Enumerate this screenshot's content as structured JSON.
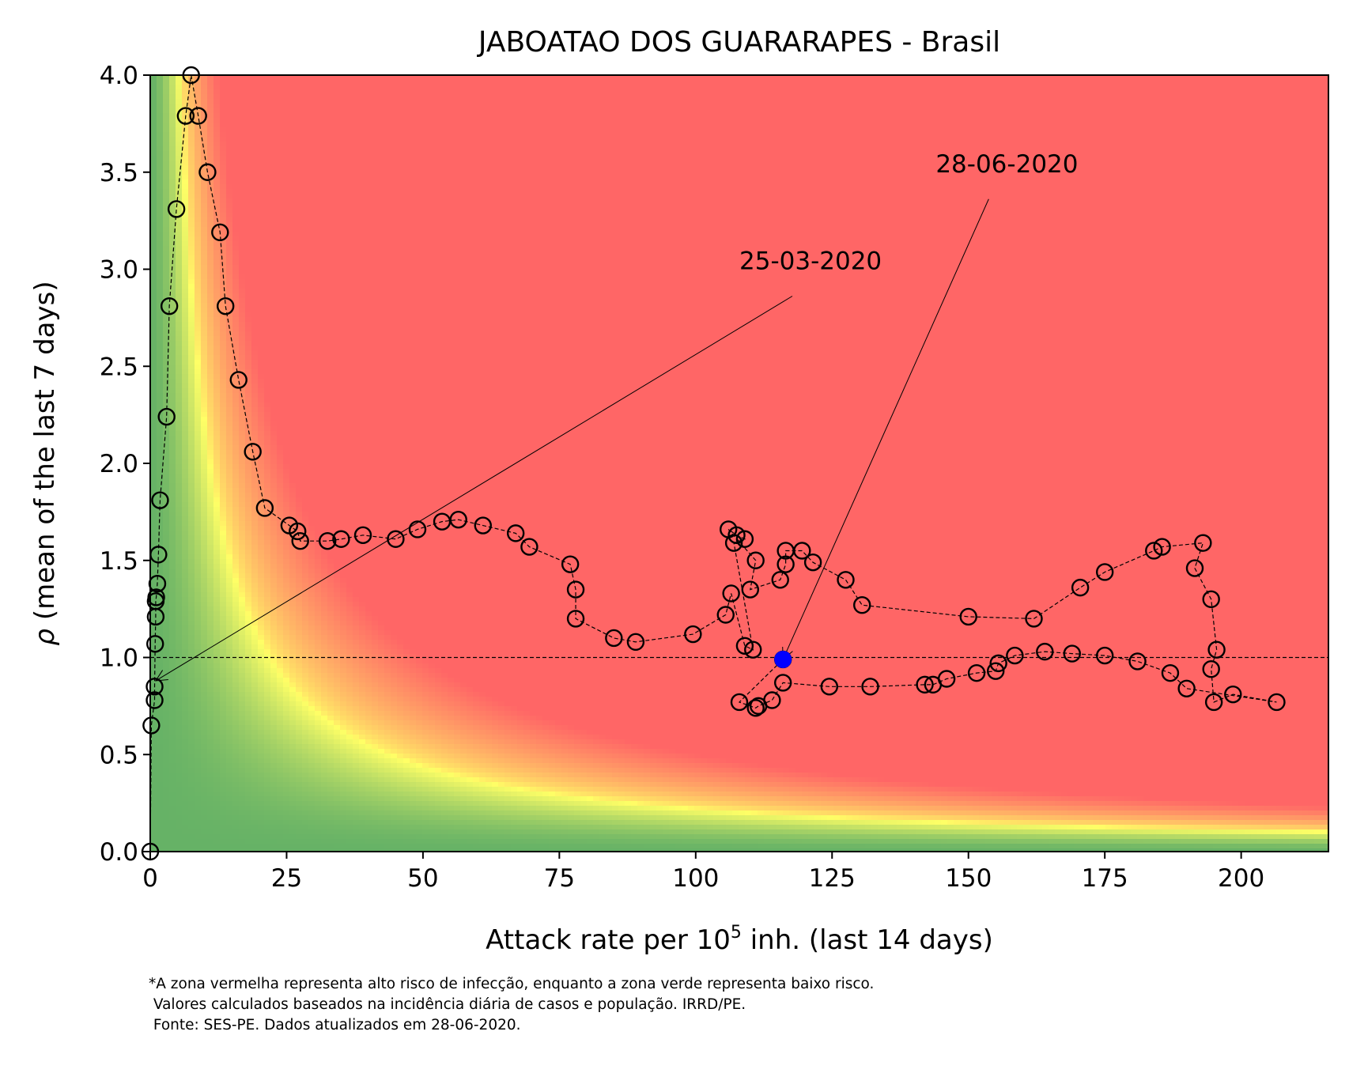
{
  "chart_data": {
    "type": "scatter",
    "title": "JABOATAO DOS GUARARAPES - Brasil",
    "xlabel_prefix": "Attack rate per 10",
    "xlabel_sup": "5",
    "xlabel_suffix": " inh. (last 14 days)",
    "ylabel_symbol": "ρ",
    "ylabel": " (mean of the last 7 days)",
    "xlim": [
      0,
      216
    ],
    "ylim": [
      0,
      4
    ],
    "xticks": [
      0,
      25,
      50,
      75,
      100,
      125,
      150,
      175,
      200
    ],
    "yticks": [
      0.0,
      0.5,
      1.0,
      1.5,
      2.0,
      2.5,
      3.0,
      3.5,
      4.0
    ],
    "ytick_labels": [
      "0.0",
      "0.5",
      "1.0",
      "1.5",
      "2.0",
      "2.5",
      "3.0",
      "3.5",
      "4.0"
    ],
    "reference_line_y": 1.0,
    "background": "risk heatmap: green (low) to yellow to red (high)",
    "colors": {
      "red": "#ff6666",
      "yellow": "#ffff66",
      "green": "#66b266",
      "current_point": "#0000ff"
    },
    "series": [
      {
        "points": [
          [
            0.0,
            0.0
          ],
          [
            0.2,
            0.65
          ],
          [
            0.8,
            0.78
          ],
          [
            0.8,
            0.85
          ],
          [
            0.9,
            1.07
          ],
          [
            1.0,
            1.21
          ],
          [
            1.0,
            1.29
          ],
          [
            1.1,
            1.31
          ],
          [
            1.3,
            1.38
          ],
          [
            1.5,
            1.53
          ],
          [
            1.8,
            1.81
          ],
          [
            3.0,
            2.24
          ],
          [
            3.5,
            2.81
          ],
          [
            4.8,
            3.31
          ],
          [
            6.5,
            3.79
          ],
          [
            7.5,
            4.0
          ],
          [
            8.8,
            3.79
          ],
          [
            10.5,
            3.5
          ],
          [
            12.8,
            3.19
          ],
          [
            13.8,
            2.81
          ],
          [
            16.2,
            2.43
          ],
          [
            18.8,
            2.06
          ],
          [
            21.0,
            1.77
          ],
          [
            25.5,
            1.68
          ],
          [
            27.0,
            1.65
          ],
          [
            27.5,
            1.6
          ],
          [
            32.5,
            1.6
          ],
          [
            35.0,
            1.61
          ],
          [
            39.0,
            1.63
          ],
          [
            45.0,
            1.61
          ],
          [
            49.0,
            1.66
          ],
          [
            53.5,
            1.7
          ],
          [
            56.5,
            1.71
          ],
          [
            61.0,
            1.68
          ],
          [
            67.0,
            1.64
          ],
          [
            69.5,
            1.57
          ],
          [
            77.0,
            1.48
          ],
          [
            78.0,
            1.35
          ],
          [
            78.0,
            1.2
          ],
          [
            85.0,
            1.1
          ],
          [
            89.0,
            1.08
          ],
          [
            99.5,
            1.12
          ],
          [
            105.5,
            1.22
          ],
          [
            106.5,
            1.33
          ],
          [
            109.0,
            1.06
          ],
          [
            110.5,
            1.04
          ],
          [
            107.0,
            1.59
          ],
          [
            109.0,
            1.61
          ],
          [
            107.5,
            1.63
          ],
          [
            106.0,
            1.66
          ],
          [
            111.0,
            1.5
          ],
          [
            110.0,
            1.35
          ],
          [
            115.5,
            1.4
          ],
          [
            116.5,
            1.48
          ],
          [
            116.5,
            1.55
          ],
          [
            119.5,
            1.55
          ],
          [
            121.5,
            1.49
          ],
          [
            127.5,
            1.4
          ],
          [
            130.5,
            1.27
          ],
          [
            150.0,
            1.21
          ],
          [
            162.0,
            1.2
          ],
          [
            170.5,
            1.36
          ],
          [
            175.0,
            1.44
          ],
          [
            184.0,
            1.55
          ],
          [
            185.5,
            1.57
          ],
          [
            193.0,
            1.59
          ],
          [
            191.5,
            1.46
          ],
          [
            194.5,
            1.3
          ],
          [
            195.5,
            1.04
          ],
          [
            194.5,
            0.94
          ],
          [
            195.0,
            0.77
          ],
          [
            198.5,
            0.81
          ],
          [
            206.5,
            0.77
          ],
          [
            190.0,
            0.84
          ],
          [
            187.0,
            0.92
          ],
          [
            181.0,
            0.98
          ],
          [
            175.0,
            1.01
          ],
          [
            169.0,
            1.02
          ],
          [
            164.0,
            1.03
          ],
          [
            158.5,
            1.01
          ],
          [
            155.5,
            0.97
          ],
          [
            155.0,
            0.93
          ],
          [
            151.5,
            0.92
          ],
          [
            146.0,
            0.89
          ],
          [
            143.5,
            0.86
          ],
          [
            142.0,
            0.86
          ],
          [
            132.0,
            0.85
          ],
          [
            124.5,
            0.85
          ],
          [
            116.0,
            0.87
          ],
          [
            114.0,
            0.78
          ],
          [
            111.5,
            0.75
          ],
          [
            111.0,
            0.74
          ],
          [
            108.0,
            0.77
          ],
          [
            116.0,
            0.99
          ]
        ]
      }
    ],
    "current_point": [
      116.0,
      0.99
    ],
    "annotations": [
      {
        "text": "25-03-2020",
        "target": [
          1.0,
          0.88
        ],
        "text_at": [
          108.0,
          3.0
        ]
      },
      {
        "text": "28-06-2020",
        "target": [
          116.0,
          0.99
        ],
        "text_at": [
          144.0,
          3.5
        ]
      }
    ]
  },
  "footnote": {
    "line1": "*A zona vermelha representa alto risco de infecção, enquanto a zona verde representa baixo risco.",
    "line2": " Valores calculados baseados na incidência diária de casos e população. IRRD/PE.",
    "line3": " Fonte: SES-PE. Dados atualizados em 28-06-2020."
  }
}
